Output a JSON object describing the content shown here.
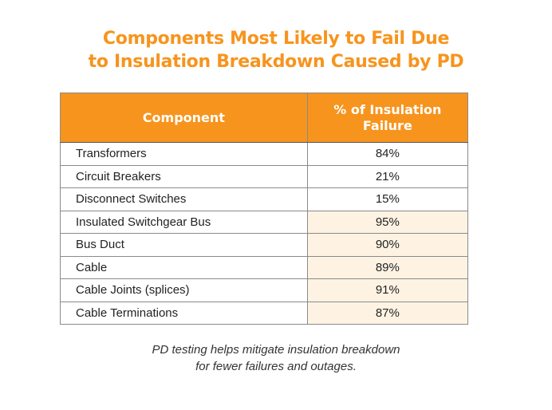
{
  "title_line1": "Components Most Likely to Fail Due",
  "title_line2": "to Insulation Breakdown Caused by PD",
  "highlight_color": "#f7941d",
  "chart_data": {
    "type": "table",
    "title": "Components Most Likely to Fail Due to Insulation Breakdown Caused by PD",
    "columns": [
      "Component",
      "% of Insulation Failure"
    ],
    "rows": [
      {
        "component": "Transformers",
        "value": "84%",
        "highlighted": false
      },
      {
        "component": "Circuit Breakers",
        "value": "21%",
        "highlighted": false
      },
      {
        "component": "Disconnect Switches",
        "value": "15%",
        "highlighted": false
      },
      {
        "component": "Insulated Switchgear Bus",
        "value": "95%",
        "highlighted": true
      },
      {
        "component": "Bus Duct",
        "value": "90%",
        "highlighted": true
      },
      {
        "component": "Cable",
        "value": "89%",
        "highlighted": true
      },
      {
        "component": "Cable Joints (splices)",
        "value": "91%",
        "highlighted": true
      },
      {
        "component": "Cable Terminations",
        "value": "87%",
        "highlighted": true
      }
    ]
  },
  "caption_line1": "PD testing helps mitigate insulation breakdown",
  "caption_line2": "for fewer failures and outages."
}
